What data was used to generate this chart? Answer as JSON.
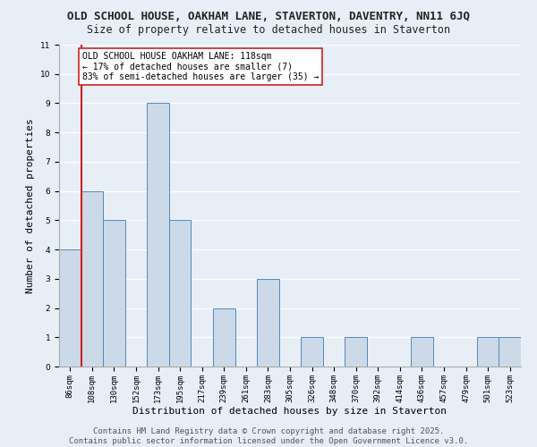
{
  "title_line1": "OLD SCHOOL HOUSE, OAKHAM LANE, STAVERTON, DAVENTRY, NN11 6JQ",
  "title_line2": "Size of property relative to detached houses in Staverton",
  "xlabel": "Distribution of detached houses by size in Staverton",
  "ylabel": "Number of detached properties",
  "categories": [
    "86sqm",
    "108sqm",
    "130sqm",
    "152sqm",
    "173sqm",
    "195sqm",
    "217sqm",
    "239sqm",
    "261sqm",
    "283sqm",
    "305sqm",
    "326sqm",
    "348sqm",
    "370sqm",
    "392sqm",
    "414sqm",
    "436sqm",
    "457sqm",
    "479sqm",
    "501sqm",
    "523sqm"
  ],
  "values": [
    4,
    6,
    5,
    0,
    9,
    5,
    0,
    2,
    0,
    3,
    0,
    1,
    0,
    1,
    0,
    0,
    1,
    0,
    0,
    1,
    1
  ],
  "bar_color": "#ccd9e8",
  "bar_edge_color": "#5588bb",
  "ref_line_color": "#cc2222",
  "ref_line_x": 0.5,
  "annotation_text": "OLD SCHOOL HOUSE OAKHAM LANE: 118sqm\n← 17% of detached houses are smaller (7)\n83% of semi-detached houses are larger (35) →",
  "annotation_box_facecolor": "#ffffff",
  "annotation_box_edgecolor": "#cc2222",
  "ylim": [
    0,
    11
  ],
  "yticks": [
    0,
    1,
    2,
    3,
    4,
    5,
    6,
    7,
    8,
    9,
    10,
    11
  ],
  "background_color": "#e8eef5",
  "grid_color": "#ffffff",
  "footer_line1": "Contains HM Land Registry data © Crown copyright and database right 2025.",
  "footer_line2": "Contains public sector information licensed under the Open Government Licence v3.0.",
  "title_fontsize": 9,
  "subtitle_fontsize": 8.5,
  "axis_label_fontsize": 8,
  "tick_fontsize": 6.5,
  "annotation_fontsize": 7,
  "footer_fontsize": 6.5
}
